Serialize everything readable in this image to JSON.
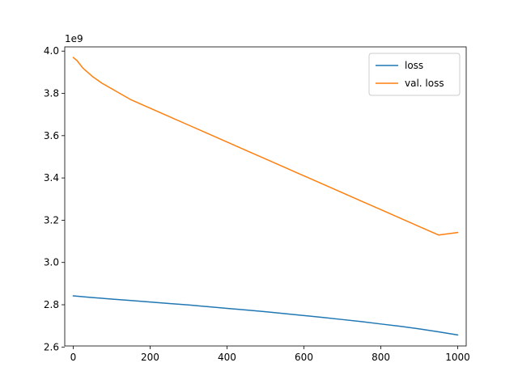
{
  "chart_data": {
    "type": "line",
    "title": "",
    "xlabel": "",
    "ylabel": "",
    "xlim": [
      -22,
      1022
    ],
    "ylim": [
      2.605,
      4.02
    ],
    "x_ticks": [
      0,
      200,
      400,
      600,
      800,
      1000
    ],
    "x_tick_labels": [
      "0",
      "200",
      "400",
      "600",
      "800",
      "1000"
    ],
    "y_ticks": [
      2.6,
      2.8,
      3.0,
      3.2,
      3.4,
      3.6,
      3.8,
      4.0
    ],
    "y_tick_labels": [
      "2.6",
      "2.8",
      "3.0",
      "3.2",
      "3.4",
      "3.6",
      "3.8",
      "4.0"
    ],
    "y_offset_label": "1e9",
    "grid": false,
    "legend_position": "top-right",
    "series": [
      {
        "name": "loss",
        "color": "#1f77b4",
        "x": [
          0,
          50,
          100,
          150,
          200,
          250,
          300,
          350,
          400,
          450,
          500,
          550,
          600,
          650,
          700,
          750,
          800,
          850,
          900,
          950,
          1000
        ],
        "y": [
          2.842,
          2.834,
          2.827,
          2.82,
          2.813,
          2.806,
          2.799,
          2.791,
          2.783,
          2.775,
          2.767,
          2.758,
          2.749,
          2.74,
          2.73,
          2.72,
          2.709,
          2.698,
          2.686,
          2.672,
          2.657
        ]
      },
      {
        "name": "val. loss",
        "color": "#ff7f0e",
        "x": [
          0,
          10,
          25,
          50,
          75,
          100,
          150,
          200,
          250,
          300,
          350,
          400,
          450,
          500,
          550,
          600,
          650,
          700,
          750,
          800,
          850,
          900,
          950,
          1000
        ],
        "y": [
          3.97,
          3.955,
          3.92,
          3.88,
          3.848,
          3.822,
          3.77,
          3.73,
          3.69,
          3.65,
          3.61,
          3.57,
          3.53,
          3.49,
          3.45,
          3.41,
          3.37,
          3.33,
          3.29,
          3.25,
          3.21,
          3.17,
          3.13,
          3.142
        ]
      }
    ]
  }
}
